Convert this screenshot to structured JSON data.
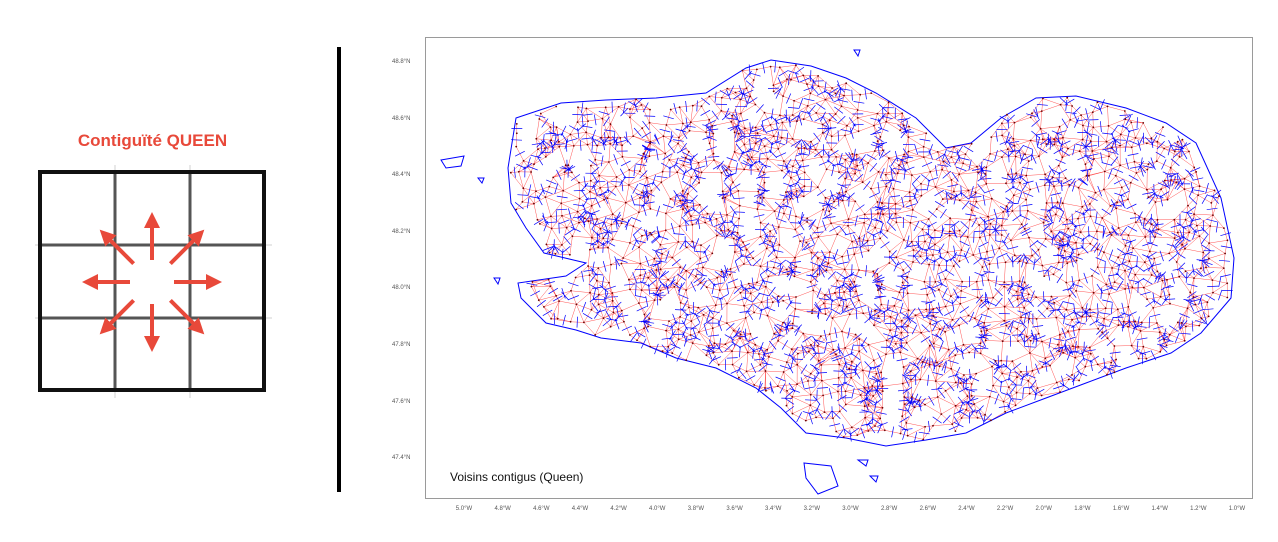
{
  "queen_panel": {
    "title": "Contiguïté QUEEN",
    "accent_color": "#e8493a",
    "grid": "3x3",
    "arrows": [
      "north",
      "north-east",
      "east",
      "south-east",
      "south",
      "south-west",
      "west",
      "north-west"
    ]
  },
  "map": {
    "caption": "Voisins contigus (Queen)",
    "polygon_color": "#0000ff",
    "neighbor_link_color": "#ff0000",
    "y_ticks": [
      "48.8°N",
      "48.6°N",
      "48.4°N",
      "48.2°N",
      "48.0°N",
      "47.8°N",
      "47.6°N",
      "47.4°N"
    ],
    "x_ticks": [
      "5.0°W",
      "4.8°W",
      "4.6°W",
      "4.4°W",
      "4.2°W",
      "4.0°W",
      "3.8°W",
      "3.6°W",
      "3.4°W",
      "3.2°W",
      "3.0°W",
      "2.8°W",
      "2.6°W",
      "2.4°W",
      "2.2°W",
      "2.0°W",
      "1.8°W",
      "1.6°W",
      "1.4°W",
      "1.2°W",
      "1.0°W"
    ]
  }
}
